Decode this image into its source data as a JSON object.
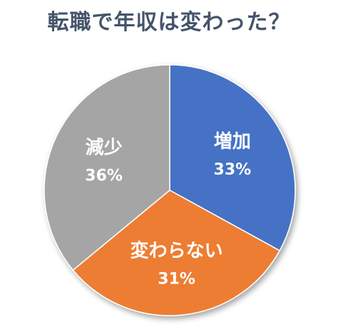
{
  "chart_data": {
    "type": "pie",
    "title": "転職で年収は変わった？",
    "slices": [
      {
        "label": "増加",
        "value": 33,
        "value_label": "33%",
        "color": "#4472c4"
      },
      {
        "label": "変わらない",
        "value": 31,
        "value_label": "31%",
        "color": "#ed7d31"
      },
      {
        "label": "減少",
        "value": 36,
        "value_label": "36%",
        "color": "#a5a5a5"
      }
    ],
    "start": "12 o'clock",
    "direction": "clockwise",
    "legend": "none"
  }
}
